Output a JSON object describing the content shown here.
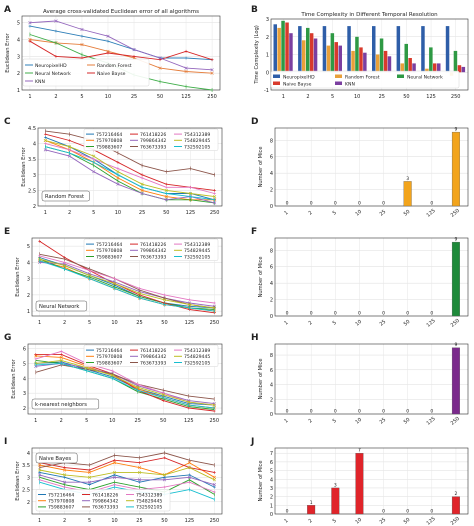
{
  "figure": {
    "panel_letters": [
      "A",
      "B",
      "C",
      "D",
      "E",
      "F",
      "G",
      "H",
      "I",
      "J"
    ]
  },
  "chart_data": [
    {
      "id": "A",
      "type": "line",
      "title": "Average cross-validated Euclidean error of all algorithms",
      "ylabel": "Euclidean Error",
      "xlabel": "",
      "categories": [
        "1",
        "2",
        "5",
        "10",
        "25",
        "50",
        "125",
        "250"
      ],
      "ylim": [
        1,
        5.4
      ],
      "yticks": [
        1,
        2,
        3,
        4,
        5
      ],
      "grid": true,
      "legend_position": "bottom-left",
      "legend_cols": 2,
      "series": [
        {
          "name": "NeuropixelHD",
          "color": "#2e7fb8",
          "values": [
            4.8,
            4.5,
            4.2,
            3.9,
            3.4,
            2.9,
            2.9,
            2.8
          ]
        },
        {
          "name": "Random Forest",
          "color": "#e57d3b",
          "values": [
            4.0,
            3.8,
            3.7,
            3.3,
            2.9,
            2.3,
            2.1,
            2.0
          ]
        },
        {
          "name": "Neural Network",
          "color": "#3fae49",
          "values": [
            4.3,
            3.8,
            3.1,
            2.6,
            1.9,
            1.5,
            1.2,
            1.0
          ]
        },
        {
          "name": "Naive Bayse",
          "color": "#d62728",
          "values": [
            3.9,
            3.0,
            2.9,
            3.2,
            3.0,
            2.8,
            3.3,
            2.8
          ]
        },
        {
          "name": "KNN",
          "color": "#9467bd",
          "values": [
            5.0,
            5.1,
            4.6,
            4.2,
            3.4,
            2.9,
            2.3,
            2.2
          ]
        }
      ]
    },
    {
      "id": "B",
      "type": "bar",
      "title": "Time Complexity in Different Temporal Resolution",
      "ylabel": "Time Complexity (Log)",
      "xlabel": "",
      "categories": [
        "1",
        "2",
        "5",
        "10",
        "25",
        "50",
        "125",
        "250"
      ],
      "ylim": [
        -1,
        3
      ],
      "yticks": [
        -1,
        0,
        1,
        2,
        3
      ],
      "grid": true,
      "legend_position": "bottom",
      "legend_cols": 3,
      "series": [
        {
          "name": "NeuropixelHD",
          "color": "#2e5ea8",
          "values": [
            2.7,
            2.6,
            2.6,
            2.6,
            2.6,
            2.6,
            2.6,
            2.6
          ]
        },
        {
          "name": "Random Forest",
          "color": "#e8a03a",
          "values": [
            2.5,
            1.8,
            1.5,
            1.2,
            1.0,
            0.5,
            0.2,
            -0.2
          ]
        },
        {
          "name": "Neural Network",
          "color": "#2e9944",
          "values": [
            2.9,
            2.5,
            2.2,
            2.0,
            1.9,
            1.6,
            1.4,
            1.2
          ]
        },
        {
          "name": "Naive Bayse",
          "color": "#d83a2c",
          "values": [
            2.8,
            2.2,
            1.7,
            1.4,
            1.2,
            0.8,
            0.5,
            0.4
          ]
        },
        {
          "name": "KNN",
          "color": "#7b3fa0",
          "values": [
            2.2,
            1.9,
            1.5,
            1.1,
            0.9,
            0.5,
            0.5,
            0.3
          ]
        }
      ]
    },
    {
      "id": "C",
      "type": "line",
      "title": "",
      "ylabel": "Euclidean Error",
      "xlabel": "",
      "categories": [
        "1",
        "2",
        "5",
        "10",
        "25",
        "50",
        "125",
        "250"
      ],
      "ylim": [
        2,
        4.5
      ],
      "yticks": [
        2.0,
        2.5,
        3.0,
        3.5,
        4.0,
        4.5
      ],
      "grid": true,
      "annotation": "Random Forest",
      "annotation_position": "bottom-left",
      "legend_position": "top-right",
      "legend_cols": 3,
      "series": [
        {
          "name": "757216464",
          "color": "#1f77b4",
          "values": [
            4.2,
            3.9,
            3.5,
            3.0,
            2.6,
            2.4,
            2.4,
            2.2
          ]
        },
        {
          "name": "757970808",
          "color": "#ff7f0e",
          "values": [
            4.1,
            3.8,
            3.4,
            2.9,
            2.5,
            2.3,
            2.2,
            2.2
          ]
        },
        {
          "name": "759883607",
          "color": "#2ca02c",
          "values": [
            3.9,
            3.7,
            3.3,
            2.8,
            2.4,
            2.2,
            2.2,
            2.1
          ]
        },
        {
          "name": "761418226",
          "color": "#d62728",
          "values": [
            4.3,
            4.1,
            3.8,
            3.4,
            3.0,
            2.7,
            2.6,
            2.5
          ]
        },
        {
          "name": "799864342",
          "color": "#9467bd",
          "values": [
            3.8,
            3.6,
            3.1,
            2.7,
            2.4,
            2.2,
            2.3,
            2.1
          ]
        },
        {
          "name": "763673393",
          "color": "#8c564b",
          "values": [
            4.4,
            4.3,
            4.1,
            3.7,
            3.3,
            3.1,
            3.2,
            3.0
          ]
        },
        {
          "name": "754312389",
          "color": "#e377c2",
          "values": [
            4.0,
            3.8,
            3.5,
            3.2,
            2.9,
            2.6,
            2.6,
            2.4
          ]
        },
        {
          "name": "754829445",
          "color": "#bcbd22",
          "values": [
            4.1,
            3.9,
            3.6,
            3.1,
            2.7,
            2.5,
            2.4,
            2.3
          ]
        },
        {
          "name": "732592105",
          "color": "#17becf",
          "values": [
            3.9,
            3.7,
            3.4,
            3.0,
            2.6,
            2.4,
            2.3,
            2.2
          ]
        }
      ]
    },
    {
      "id": "D",
      "type": "bar",
      "title": "",
      "ylabel": "Number of Mice",
      "xlabel": "",
      "categories": [
        "1",
        "2",
        "5",
        "10",
        "25",
        "50",
        "125",
        "250"
      ],
      "ylim": [
        0,
        9.5
      ],
      "yticks": [
        0,
        2,
        4,
        6,
        8
      ],
      "grid": true,
      "color": "#f2a41c",
      "values": [
        0,
        0,
        0,
        0,
        0,
        3,
        0,
        9
      ],
      "data_labels": [
        "0",
        "0",
        "0",
        "0",
        "0",
        "3",
        "0",
        "9"
      ]
    },
    {
      "id": "E",
      "type": "line",
      "title": "",
      "ylabel": "Euclidean Error",
      "xlabel": "",
      "categories": [
        "1",
        "2",
        "5",
        "10",
        "25",
        "50",
        "125",
        "250"
      ],
      "ylim": [
        0.7,
        5.5
      ],
      "yticks": [
        1,
        2,
        3,
        4,
        5
      ],
      "grid": true,
      "annotation": "Neural Network",
      "annotation_position": "bottom-left",
      "legend_position": "top-right",
      "legend_cols": 3,
      "series": [
        {
          "name": "757216464",
          "color": "#1f77b4",
          "values": [
            4.3,
            3.8,
            3.2,
            2.6,
            1.9,
            1.5,
            1.3,
            1.2
          ]
        },
        {
          "name": "757970808",
          "color": "#ff7f0e",
          "values": [
            4.1,
            3.7,
            3.0,
            2.4,
            1.8,
            1.4,
            1.2,
            1.0
          ]
        },
        {
          "name": "759883607",
          "color": "#2ca02c",
          "values": [
            4.2,
            3.6,
            3.1,
            2.5,
            1.9,
            1.5,
            1.2,
            1.1
          ]
        },
        {
          "name": "761418226",
          "color": "#d62728",
          "values": [
            5.3,
            4.3,
            3.5,
            2.7,
            2.0,
            1.5,
            1.1,
            0.9
          ]
        },
        {
          "name": "799864342",
          "color": "#9467bd",
          "values": [
            4.0,
            3.9,
            3.3,
            2.8,
            2.2,
            1.8,
            1.5,
            1.3
          ]
        },
        {
          "name": "763673393",
          "color": "#8c564b",
          "values": [
            4.5,
            4.2,
            3.6,
            3.0,
            2.3,
            1.8,
            1.4,
            1.2
          ]
        },
        {
          "name": "754312389",
          "color": "#e377c2",
          "values": [
            4.4,
            4.0,
            3.5,
            3.0,
            2.4,
            2.0,
            1.7,
            1.5
          ]
        },
        {
          "name": "754829445",
          "color": "#bcbd22",
          "values": [
            4.2,
            3.8,
            3.2,
            2.7,
            2.1,
            1.7,
            1.4,
            1.2
          ]
        },
        {
          "name": "732592105",
          "color": "#17becf",
          "values": [
            4.1,
            3.6,
            3.0,
            2.4,
            1.8,
            1.4,
            1.2,
            1.0
          ]
        }
      ]
    },
    {
      "id": "F",
      "type": "bar",
      "title": "",
      "ylabel": "Number of Mice",
      "xlabel": "",
      "categories": [
        "1",
        "2",
        "5",
        "10",
        "25",
        "50",
        "125",
        "250"
      ],
      "ylim": [
        0,
        9.5
      ],
      "yticks": [
        0,
        2,
        4,
        6,
        8
      ],
      "grid": true,
      "color": "#1e8a3a",
      "values": [
        0,
        0,
        0,
        0,
        0,
        0,
        0,
        9
      ],
      "data_labels": [
        "0",
        "0",
        "0",
        "0",
        "0",
        "0",
        "0",
        "9"
      ]
    },
    {
      "id": "G",
      "type": "line",
      "title": "",
      "ylabel": "Euclidean Error",
      "xlabel": "",
      "categories": [
        "1",
        "2",
        "5",
        "10",
        "25",
        "50",
        "125",
        "250"
      ],
      "ylim": [
        1.6,
        6.3
      ],
      "yticks": [
        2,
        3,
        4,
        5,
        6
      ],
      "grid": true,
      "annotation": "k-nearest neighbors",
      "annotation_position": "bottom-left",
      "legend_position": "top-right",
      "legend_cols": 3,
      "series": [
        {
          "name": "757216464",
          "color": "#1f77b4",
          "values": [
            5.0,
            5.1,
            4.6,
            4.1,
            3.3,
            2.8,
            2.3,
            2.2
          ]
        },
        {
          "name": "757970808",
          "color": "#ff7f0e",
          "values": [
            5.5,
            5.4,
            4.8,
            4.2,
            3.3,
            2.7,
            2.2,
            2.0
          ]
        },
        {
          "name": "759883607",
          "color": "#2ca02c",
          "values": [
            5.2,
            5.0,
            4.5,
            4.0,
            3.1,
            2.6,
            2.1,
            1.9
          ]
        },
        {
          "name": "761418226",
          "color": "#d62728",
          "values": [
            5.6,
            5.6,
            4.9,
            4.3,
            3.2,
            2.5,
            2.0,
            1.8
          ]
        },
        {
          "name": "799864342",
          "color": "#9467bd",
          "values": [
            4.8,
            5.0,
            4.7,
            4.3,
            3.5,
            3.0,
            2.5,
            2.3
          ]
        },
        {
          "name": "763673393",
          "color": "#8c564b",
          "values": [
            4.4,
            4.9,
            4.6,
            4.3,
            3.6,
            3.2,
            2.8,
            2.6
          ]
        },
        {
          "name": "754312389",
          "color": "#e377c2",
          "values": [
            5.3,
            5.8,
            5.0,
            4.5,
            3.6,
            3.0,
            2.4,
            2.2
          ]
        },
        {
          "name": "754829445",
          "color": "#bcbd22",
          "values": [
            5.0,
            5.2,
            4.7,
            4.2,
            3.4,
            2.9,
            2.4,
            2.2
          ]
        },
        {
          "name": "732592105",
          "color": "#17becf",
          "values": [
            4.9,
            5.0,
            4.5,
            4.0,
            3.2,
            2.7,
            2.2,
            2.0
          ]
        }
      ]
    },
    {
      "id": "H",
      "type": "bar",
      "title": "",
      "ylabel": "Number of Mice",
      "xlabel": "",
      "categories": [
        "1",
        "2",
        "5",
        "10",
        "25",
        "50",
        "125",
        "250"
      ],
      "ylim": [
        0,
        9.5
      ],
      "yticks": [
        0,
        2,
        4,
        6,
        8
      ],
      "grid": true,
      "color": "#7b2a8c",
      "values": [
        0,
        0,
        0,
        0,
        0,
        0,
        0,
        9
      ],
      "data_labels": [
        "0",
        "0",
        "0",
        "0",
        "0",
        "0",
        "0",
        "9"
      ]
    },
    {
      "id": "I",
      "type": "line",
      "title": "",
      "ylabel": "Euclidean Error",
      "xlabel": "",
      "categories": [
        "1",
        "2",
        "5",
        "10",
        "25",
        "50",
        "125",
        "250"
      ],
      "ylim": [
        1.5,
        4.2
      ],
      "yticks": [
        2.0,
        2.5,
        3.0,
        3.5,
        4.0
      ],
      "grid": true,
      "annotation": "Naive Bayes",
      "annotation_position": "top-left",
      "legend_position": "bottom-left",
      "legend_cols": 3,
      "series": [
        {
          "name": "757216464",
          "color": "#1f77b4",
          "values": [
            3.2,
            3.0,
            2.7,
            3.1,
            2.8,
            3.0,
            3.1,
            2.6
          ]
        },
        {
          "name": "757970808",
          "color": "#ff7f0e",
          "values": [
            3.5,
            3.3,
            3.2,
            3.6,
            3.4,
            3.1,
            3.6,
            3.0
          ]
        },
        {
          "name": "759883607",
          "color": "#2ca02c",
          "values": [
            3.0,
            2.7,
            2.5,
            2.8,
            2.6,
            2.4,
            2.9,
            2.3
          ]
        },
        {
          "name": "761418226",
          "color": "#d62728",
          "values": [
            3.6,
            3.4,
            3.3,
            3.7,
            3.6,
            3.8,
            3.4,
            3.2
          ]
        },
        {
          "name": "799864342",
          "color": "#9467bd",
          "values": [
            3.1,
            2.8,
            2.8,
            3.0,
            2.9,
            2.9,
            3.0,
            2.7
          ]
        },
        {
          "name": "763673393",
          "color": "#8c564b",
          "values": [
            3.4,
            3.6,
            3.5,
            3.9,
            3.8,
            4.0,
            3.7,
            3.5
          ]
        },
        {
          "name": "754312389",
          "color": "#e377c2",
          "values": [
            2.9,
            2.6,
            2.4,
            2.7,
            2.5,
            2.6,
            2.8,
            2.4
          ]
        },
        {
          "name": "754829445",
          "color": "#bcbd22",
          "values": [
            3.3,
            3.1,
            3.0,
            3.2,
            3.2,
            3.1,
            3.4,
            2.9
          ]
        },
        {
          "name": "732592105",
          "color": "#17becf",
          "values": [
            2.8,
            2.5,
            2.3,
            2.6,
            2.4,
            2.3,
            2.5,
            2.1
          ]
        }
      ]
    },
    {
      "id": "J",
      "type": "bar",
      "title": "",
      "ylabel": "Number of Mice",
      "xlabel": "",
      "categories": [
        "1",
        "2",
        "5",
        "10",
        "25",
        "50",
        "125",
        "250"
      ],
      "ylim": [
        0,
        7.6
      ],
      "yticks": [
        0,
        1,
        2,
        3,
        4,
        5,
        6,
        7
      ],
      "grid": true,
      "color": "#e0242a",
      "values": [
        0,
        1,
        3,
        7,
        0,
        0,
        0,
        2
      ],
      "data_labels": [
        "0",
        "1",
        "3",
        "7",
        "0",
        "0",
        "0",
        "2"
      ]
    }
  ]
}
